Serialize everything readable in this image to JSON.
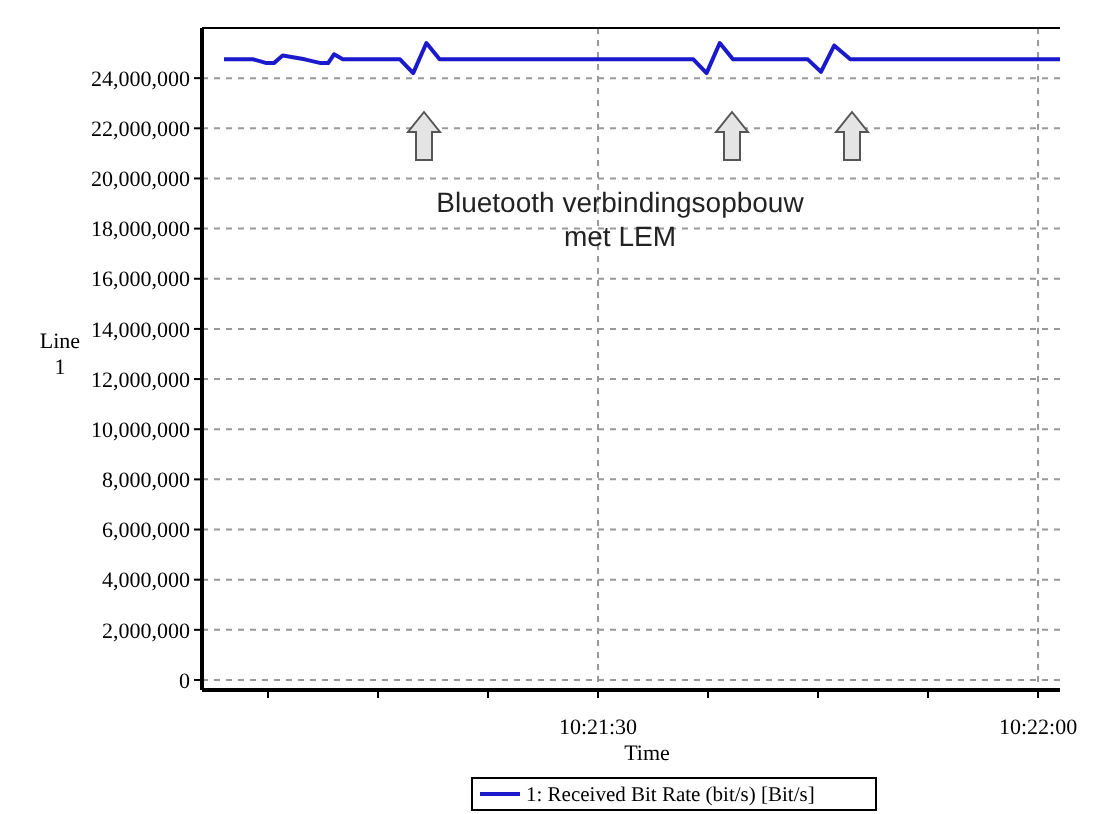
{
  "chart_data": {
    "type": "line",
    "xlabel": "Time",
    "ylabel": "Line 1",
    "annotations": [
      "Bluetooth verbindingsopbouw met LEM"
    ],
    "x": [
      10.35125,
      10.351806,
      10.352056,
      10.352194,
      10.352361,
      10.352778,
      10.353083,
      10.353222,
      10.353333,
      10.3535,
      10.354583,
      10.354833,
      10.355083,
      10.355333,
      10.360139,
      10.360389,
      10.360639,
      10.360889,
      10.362306,
      10.362556,
      10.362806,
      10.363111,
      10.367083
    ],
    "series": [
      {
        "name": "1: Received Bit Rate (bit/s) [Bit/s]",
        "color": "#1a1acc",
        "values": [
          24750000,
          24750000,
          24600000,
          24600000,
          24900000,
          24750000,
          24600000,
          24600000,
          24950000,
          24750000,
          24750000,
          24200000,
          25400000,
          24750000,
          24750000,
          24200000,
          25400000,
          24750000,
          24750000,
          24250000,
          25300000,
          24750000,
          24750000
        ]
      }
    ],
    "xlim": [
      10.350833,
      10.367083
    ],
    "xticks": [
      {
        "value": 10.352083,
        "label": null
      },
      {
        "value": 10.354167,
        "label": null
      },
      {
        "value": 10.35625,
        "label": null
      },
      {
        "value": 10.358333,
        "label": "10:21:30"
      },
      {
        "value": 10.360417,
        "label": null
      },
      {
        "value": 10.3625,
        "label": null
      },
      {
        "value": 10.364583,
        "label": null
      },
      {
        "value": 10.366667,
        "label": "10:22:00"
      }
    ],
    "ylim": [
      -400000,
      26000000
    ],
    "yticks": [
      {
        "value": 0,
        "label": "0"
      },
      {
        "value": 2000000,
        "label": "2,000,000"
      },
      {
        "value": 4000000,
        "label": "4,000,000"
      },
      {
        "value": 6000000,
        "label": "6,000,000"
      },
      {
        "value": 8000000,
        "label": "8,000,000"
      },
      {
        "value": 10000000,
        "label": "10,000,000"
      },
      {
        "value": 12000000,
        "label": "12,000,000"
      },
      {
        "value": 14000000,
        "label": "14,000,000"
      },
      {
        "value": 16000000,
        "label": "16,000,000"
      },
      {
        "value": 18000000,
        "label": "18,000,000"
      },
      {
        "value": 20000000,
        "label": "20,000,000"
      },
      {
        "value": 22000000,
        "label": "22,000,000"
      },
      {
        "value": 24000000,
        "label": "24,000,000"
      }
    ],
    "grid": true,
    "legend": "bottom",
    "marker": "none",
    "line_style": "solid"
  }
}
